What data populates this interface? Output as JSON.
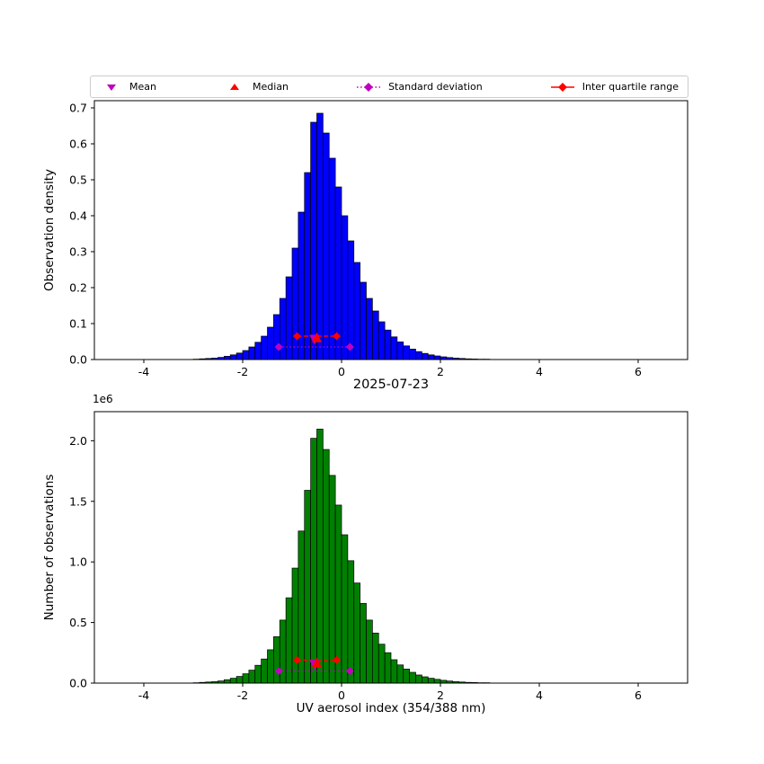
{
  "title": "2025-07-23",
  "colors": {
    "magenta": "#bf00bf",
    "red": "#ff0000",
    "blue": "#0000ff",
    "green": "#008000",
    "axis": "#000000",
    "legend_border": "#cccccc"
  },
  "legend": {
    "items": [
      {
        "label": "Mean",
        "marker": "triangle-down",
        "color_key": "magenta"
      },
      {
        "label": "Median",
        "marker": "triangle-up",
        "color_key": "red"
      },
      {
        "label": "Standard deviation",
        "marker": "diamond-dotted-line",
        "color_key": "magenta"
      },
      {
        "label": "Inter quartile range",
        "marker": "diamond-dashed-line",
        "color_key": "red"
      }
    ]
  },
  "chart_data": [
    {
      "type": "bar",
      "subtype": "histogram",
      "ylabel": "Observation density",
      "xlim": [
        -5,
        7
      ],
      "ylim": [
        0,
        0.72
      ],
      "xticks": [
        -4,
        -2,
        0,
        2,
        4,
        6
      ],
      "xticklabels": [
        "-4",
        "-2",
        "0",
        "2",
        "4",
        "6"
      ],
      "yticks": [
        0,
        0.1,
        0.2,
        0.3,
        0.4,
        0.5,
        0.6,
        0.7
      ],
      "yticklabels": [
        "0.0",
        "0.1",
        "0.2",
        "0.3",
        "0.4",
        "0.5",
        "0.6",
        "0.7"
      ],
      "grid": false,
      "bar_color": "#0000ff",
      "bin_start": -3.0,
      "bin_width": 0.125,
      "values": [
        0.001,
        0.002,
        0.003,
        0.004,
        0.006,
        0.009,
        0.013,
        0.018,
        0.025,
        0.035,
        0.048,
        0.065,
        0.09,
        0.125,
        0.17,
        0.23,
        0.31,
        0.41,
        0.52,
        0.66,
        0.685,
        0.63,
        0.56,
        0.48,
        0.4,
        0.33,
        0.27,
        0.215,
        0.17,
        0.135,
        0.105,
        0.082,
        0.063,
        0.049,
        0.038,
        0.029,
        0.022,
        0.017,
        0.013,
        0.01,
        0.0075,
        0.0055,
        0.004,
        0.003,
        0.002,
        0.0015,
        0.001,
        0.0007
      ],
      "markers": {
        "mean": {
          "x": -0.55,
          "y": 0.055
        },
        "median": {
          "x": -0.5,
          "y": 0.062
        },
        "std": {
          "x1": -1.27,
          "x2": 0.17,
          "y": 0.035
        },
        "iqr": {
          "x1": -0.9,
          "x2": -0.1,
          "y": 0.065
        }
      }
    },
    {
      "type": "bar",
      "subtype": "histogram",
      "ylabel": "Number of observations",
      "xlabel": "UV aerosol index (354/388 nm)",
      "offset_text": "1e6",
      "y_unit": "1e6",
      "xlim": [
        -5,
        7
      ],
      "ylim": [
        0,
        2.24
      ],
      "xticks": [
        -4,
        -2,
        0,
        2,
        4,
        6
      ],
      "xticklabels": [
        "-4",
        "-2",
        "0",
        "2",
        "4",
        "6"
      ],
      "yticks": [
        0,
        0.5,
        1.0,
        1.5,
        2.0
      ],
      "yticklabels": [
        "0.0",
        "0.5",
        "1.0",
        "1.5",
        "2.0"
      ],
      "grid": false,
      "bar_color": "#008000",
      "bin_start": -3.0,
      "bin_width": 0.125,
      "values": [
        0.003,
        0.006,
        0.009,
        0.012,
        0.018,
        0.028,
        0.04,
        0.055,
        0.077,
        0.107,
        0.147,
        0.199,
        0.275,
        0.383,
        0.52,
        0.704,
        0.949,
        1.255,
        1.591,
        2.02,
        2.096,
        1.928,
        1.714,
        1.469,
        1.224,
        1.01,
        0.826,
        0.658,
        0.52,
        0.413,
        0.321,
        0.251,
        0.193,
        0.15,
        0.116,
        0.089,
        0.067,
        0.052,
        0.04,
        0.031,
        0.023,
        0.017,
        0.012,
        0.009,
        0.006,
        0.005,
        0.003,
        0.002
      ],
      "markers": {
        "mean": {
          "x": -0.55,
          "y": 0.15
        },
        "median": {
          "x": -0.5,
          "y": 0.17
        },
        "std": {
          "x1": -1.27,
          "x2": 0.17,
          "y": 0.1
        },
        "iqr": {
          "x1": -0.9,
          "x2": -0.1,
          "y": 0.19
        }
      }
    }
  ]
}
